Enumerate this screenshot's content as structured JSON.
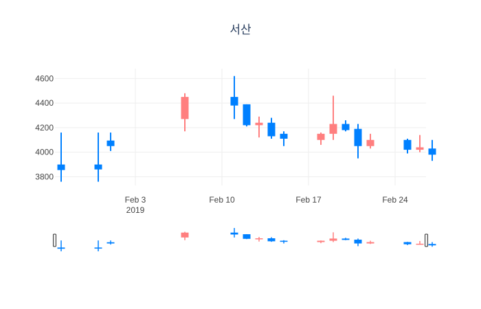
{
  "chart_data": {
    "type": "candlestick",
    "title": "서산",
    "x_ticks": [
      {
        "date": "2019-02-03",
        "label": "Feb 3",
        "sublabel": "2019"
      },
      {
        "date": "2019-02-10",
        "label": "Feb 10"
      },
      {
        "date": "2019-02-17",
        "label": "Feb 17"
      },
      {
        "date": "2019-02-24",
        "label": "Feb 24"
      }
    ],
    "y_ticks": [
      3800,
      4000,
      4200,
      4400,
      4600
    ],
    "xlim": [
      "2019-01-28",
      "2019-02-26"
    ],
    "ylim": [
      3730,
      4680
    ],
    "increasing_color": "#ff7f7f",
    "decreasing_color": "#0080ff",
    "grid": true,
    "rangeslider": true,
    "candles": [
      {
        "date": "2019-01-28",
        "open": 3900,
        "high": 4160,
        "low": 3760,
        "close": 3855
      },
      {
        "date": "2019-01-31",
        "open": 3900,
        "high": 4160,
        "low": 3760,
        "close": 3860
      },
      {
        "date": "2019-02-01",
        "open": 4095,
        "high": 4160,
        "low": 4010,
        "close": 4050
      },
      {
        "date": "2019-02-07",
        "open": 4270,
        "high": 4480,
        "low": 4170,
        "close": 4450
      },
      {
        "date": "2019-02-11",
        "open": 4450,
        "high": 4620,
        "low": 4270,
        "close": 4380
      },
      {
        "date": "2019-02-12",
        "open": 4390,
        "high": 4390,
        "low": 4210,
        "close": 4220
      },
      {
        "date": "2019-02-13",
        "open": 4220,
        "high": 4290,
        "low": 4120,
        "close": 4240
      },
      {
        "date": "2019-02-14",
        "open": 4240,
        "high": 4280,
        "low": 4110,
        "close": 4130
      },
      {
        "date": "2019-02-15",
        "open": 4150,
        "high": 4170,
        "low": 4050,
        "close": 4110
      },
      {
        "date": "2019-02-18",
        "open": 4100,
        "high": 4160,
        "low": 4060,
        "close": 4150
      },
      {
        "date": "2019-02-19",
        "open": 4150,
        "high": 4460,
        "low": 4100,
        "close": 4230
      },
      {
        "date": "2019-02-20",
        "open": 4230,
        "high": 4260,
        "low": 4170,
        "close": 4180
      },
      {
        "date": "2019-02-21",
        "open": 4190,
        "high": 4230,
        "low": 3950,
        "close": 4050
      },
      {
        "date": "2019-02-22",
        "open": 4050,
        "high": 4150,
        "low": 4030,
        "close": 4100
      },
      {
        "date": "2019-02-25",
        "open": 4100,
        "high": 4110,
        "low": 3990,
        "close": 4020
      },
      {
        "date": "2019-02-26",
        "open": 4020,
        "high": 4140,
        "low": 4000,
        "close": 4040
      },
      {
        "date": "2019-02-27",
        "open": 4030,
        "high": 4100,
        "low": 3930,
        "close": 3980
      }
    ]
  }
}
